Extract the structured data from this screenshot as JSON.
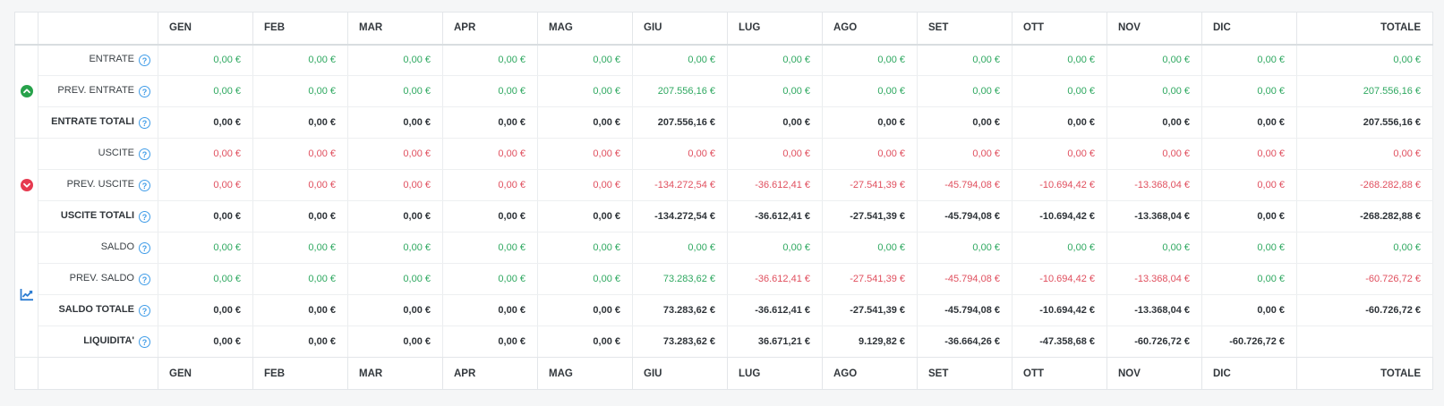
{
  "columns": [
    "GEN",
    "FEB",
    "MAR",
    "APR",
    "MAG",
    "GIU",
    "LUG",
    "AGO",
    "SET",
    "OTT",
    "NOV",
    "DIC",
    "TOTALE"
  ],
  "icons": {
    "help": "?"
  },
  "colors": {
    "positive": "#2ea860",
    "negative": "#e04f5e",
    "help": "#3f9ce8",
    "group_up": "#27a24b",
    "group_down": "#e63a50",
    "chart_blue": "#2d7dd2"
  },
  "groups": [
    {
      "name": "entrate",
      "icon": "circle-arrow-up",
      "rows": [
        {
          "label": "ENTRATE",
          "bold": false,
          "cells": [
            {
              "v": "0,00 €",
              "c": "g"
            },
            {
              "v": "0,00 €",
              "c": "g"
            },
            {
              "v": "0,00 €",
              "c": "g"
            },
            {
              "v": "0,00 €",
              "c": "g"
            },
            {
              "v": "0,00 €",
              "c": "g"
            },
            {
              "v": "0,00 €",
              "c": "g"
            },
            {
              "v": "0,00 €",
              "c": "g"
            },
            {
              "v": "0,00 €",
              "c": "g"
            },
            {
              "v": "0,00 €",
              "c": "g"
            },
            {
              "v": "0,00 €",
              "c": "g"
            },
            {
              "v": "0,00 €",
              "c": "g"
            },
            {
              "v": "0,00 €",
              "c": "g"
            },
            {
              "v": "0,00 €",
              "c": "g"
            }
          ]
        },
        {
          "label": "PREV. ENTRATE",
          "bold": false,
          "cells": [
            {
              "v": "0,00 €",
              "c": "g"
            },
            {
              "v": "0,00 €",
              "c": "g"
            },
            {
              "v": "0,00 €",
              "c": "g"
            },
            {
              "v": "0,00 €",
              "c": "g"
            },
            {
              "v": "0,00 €",
              "c": "g"
            },
            {
              "v": "207.556,16 €",
              "c": "g"
            },
            {
              "v": "0,00 €",
              "c": "g"
            },
            {
              "v": "0,00 €",
              "c": "g"
            },
            {
              "v": "0,00 €",
              "c": "g"
            },
            {
              "v": "0,00 €",
              "c": "g"
            },
            {
              "v": "0,00 €",
              "c": "g"
            },
            {
              "v": "0,00 €",
              "c": "g"
            },
            {
              "v": "207.556,16 €",
              "c": "g"
            }
          ]
        },
        {
          "label": "ENTRATE TOTALI",
          "bold": true,
          "cells": [
            {
              "v": "0,00 €",
              "c": "g"
            },
            {
              "v": "0,00 €",
              "c": "g"
            },
            {
              "v": "0,00 €",
              "c": "g"
            },
            {
              "v": "0,00 €",
              "c": "g"
            },
            {
              "v": "0,00 €",
              "c": "g"
            },
            {
              "v": "207.556,16 €",
              "c": "g"
            },
            {
              "v": "0,00 €",
              "c": "g"
            },
            {
              "v": "0,00 €",
              "c": "g"
            },
            {
              "v": "0,00 €",
              "c": "g"
            },
            {
              "v": "0,00 €",
              "c": "g"
            },
            {
              "v": "0,00 €",
              "c": "g"
            },
            {
              "v": "0,00 €",
              "c": "g"
            },
            {
              "v": "207.556,16 €",
              "c": "g"
            }
          ]
        }
      ]
    },
    {
      "name": "uscite",
      "icon": "circle-arrow-down",
      "rows": [
        {
          "label": "USCITE",
          "bold": false,
          "cells": [
            {
              "v": "0,00 €",
              "c": "r"
            },
            {
              "v": "0,00 €",
              "c": "r"
            },
            {
              "v": "0,00 €",
              "c": "r"
            },
            {
              "v": "0,00 €",
              "c": "r"
            },
            {
              "v": "0,00 €",
              "c": "r"
            },
            {
              "v": "0,00 €",
              "c": "r"
            },
            {
              "v": "0,00 €",
              "c": "r"
            },
            {
              "v": "0,00 €",
              "c": "r"
            },
            {
              "v": "0,00 €",
              "c": "r"
            },
            {
              "v": "0,00 €",
              "c": "r"
            },
            {
              "v": "0,00 €",
              "c": "r"
            },
            {
              "v": "0,00 €",
              "c": "r"
            },
            {
              "v": "0,00 €",
              "c": "r"
            }
          ]
        },
        {
          "label": "PREV. USCITE",
          "bold": false,
          "cells": [
            {
              "v": "0,00 €",
              "c": "r"
            },
            {
              "v": "0,00 €",
              "c": "r"
            },
            {
              "v": "0,00 €",
              "c": "r"
            },
            {
              "v": "0,00 €",
              "c": "r"
            },
            {
              "v": "0,00 €",
              "c": "r"
            },
            {
              "v": "-134.272,54 €",
              "c": "r"
            },
            {
              "v": "-36.612,41 €",
              "c": "r"
            },
            {
              "v": "-27.541,39 €",
              "c": "r"
            },
            {
              "v": "-45.794,08 €",
              "c": "r"
            },
            {
              "v": "-10.694,42 €",
              "c": "r"
            },
            {
              "v": "-13.368,04 €",
              "c": "r"
            },
            {
              "v": "0,00 €",
              "c": "r"
            },
            {
              "v": "-268.282,88 €",
              "c": "r"
            }
          ]
        },
        {
          "label": "USCITE TOTALI",
          "bold": true,
          "cells": [
            {
              "v": "0,00 €",
              "c": "r"
            },
            {
              "v": "0,00 €",
              "c": "r"
            },
            {
              "v": "0,00 €",
              "c": "r"
            },
            {
              "v": "0,00 €",
              "c": "r"
            },
            {
              "v": "0,00 €",
              "c": "r"
            },
            {
              "v": "-134.272,54 €",
              "c": "r"
            },
            {
              "v": "-36.612,41 €",
              "c": "r"
            },
            {
              "v": "-27.541,39 €",
              "c": "r"
            },
            {
              "v": "-45.794,08 €",
              "c": "r"
            },
            {
              "v": "-10.694,42 €",
              "c": "r"
            },
            {
              "v": "-13.368,04 €",
              "c": "r"
            },
            {
              "v": "0,00 €",
              "c": "r"
            },
            {
              "v": "-268.282,88 €",
              "c": "r"
            }
          ]
        }
      ]
    },
    {
      "name": "saldo",
      "icon": "chart-line",
      "rows": [
        {
          "label": "SALDO",
          "bold": false,
          "cells": [
            {
              "v": "0,00 €",
              "c": "g"
            },
            {
              "v": "0,00 €",
              "c": "g"
            },
            {
              "v": "0,00 €",
              "c": "g"
            },
            {
              "v": "0,00 €",
              "c": "g"
            },
            {
              "v": "0,00 €",
              "c": "g"
            },
            {
              "v": "0,00 €",
              "c": "g"
            },
            {
              "v": "0,00 €",
              "c": "g"
            },
            {
              "v": "0,00 €",
              "c": "g"
            },
            {
              "v": "0,00 €",
              "c": "g"
            },
            {
              "v": "0,00 €",
              "c": "g"
            },
            {
              "v": "0,00 €",
              "c": "g"
            },
            {
              "v": "0,00 €",
              "c": "g"
            },
            {
              "v": "0,00 €",
              "c": "g"
            }
          ]
        },
        {
          "label": "PREV. SALDO",
          "bold": false,
          "cells": [
            {
              "v": "0,00 €",
              "c": "g"
            },
            {
              "v": "0,00 €",
              "c": "g"
            },
            {
              "v": "0,00 €",
              "c": "g"
            },
            {
              "v": "0,00 €",
              "c": "g"
            },
            {
              "v": "0,00 €",
              "c": "g"
            },
            {
              "v": "73.283,62 €",
              "c": "g"
            },
            {
              "v": "-36.612,41 €",
              "c": "r"
            },
            {
              "v": "-27.541,39 €",
              "c": "r"
            },
            {
              "v": "-45.794,08 €",
              "c": "r"
            },
            {
              "v": "-10.694,42 €",
              "c": "r"
            },
            {
              "v": "-13.368,04 €",
              "c": "r"
            },
            {
              "v": "0,00 €",
              "c": "g"
            },
            {
              "v": "-60.726,72 €",
              "c": "r"
            }
          ]
        },
        {
          "label": "SALDO TOTALE",
          "bold": true,
          "cells": [
            {
              "v": "0,00 €",
              "c": "g"
            },
            {
              "v": "0,00 €",
              "c": "g"
            },
            {
              "v": "0,00 €",
              "c": "g"
            },
            {
              "v": "0,00 €",
              "c": "g"
            },
            {
              "v": "0,00 €",
              "c": "g"
            },
            {
              "v": "73.283,62 €",
              "c": "g"
            },
            {
              "v": "-36.612,41 €",
              "c": "r"
            },
            {
              "v": "-27.541,39 €",
              "c": "r"
            },
            {
              "v": "-45.794,08 €",
              "c": "r"
            },
            {
              "v": "-10.694,42 €",
              "c": "r"
            },
            {
              "v": "-13.368,04 €",
              "c": "r"
            },
            {
              "v": "0,00 €",
              "c": "g"
            },
            {
              "v": "-60.726,72 €",
              "c": "r"
            }
          ]
        },
        {
          "label": "LIQUIDITA'",
          "bold": true,
          "cells": [
            {
              "v": "0,00 €",
              "c": "g"
            },
            {
              "v": "0,00 €",
              "c": "g"
            },
            {
              "v": "0,00 €",
              "c": "g"
            },
            {
              "v": "0,00 €",
              "c": "g"
            },
            {
              "v": "0,00 €",
              "c": "g"
            },
            {
              "v": "73.283,62 €",
              "c": "g"
            },
            {
              "v": "36.671,21 €",
              "c": "g"
            },
            {
              "v": "9.129,82 €",
              "c": "g"
            },
            {
              "v": "-36.664,26 €",
              "c": "r"
            },
            {
              "v": "-47.358,68 €",
              "c": "r"
            },
            {
              "v": "-60.726,72 €",
              "c": "r"
            },
            {
              "v": "-60.726,72 €",
              "c": "r"
            },
            {
              "v": "",
              "c": ""
            }
          ]
        }
      ]
    }
  ]
}
